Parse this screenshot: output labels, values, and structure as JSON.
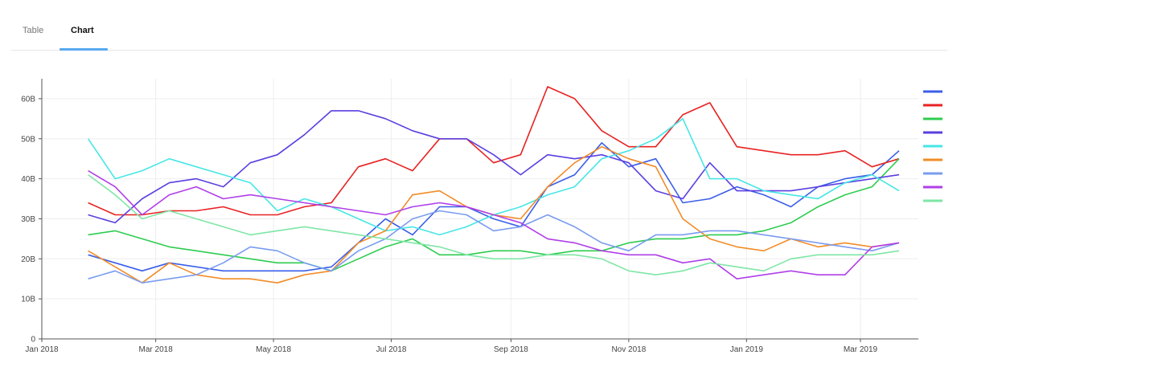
{
  "tabs": {
    "table_label": "Table",
    "chart_label": "Chart",
    "active": "Chart"
  },
  "chart_data": {
    "type": "line",
    "title": "",
    "xlabel": "",
    "ylabel": "",
    "x_tick_labels": [
      "Jan 2018",
      "Mar 2018",
      "May 2018",
      "Jul 2018",
      "Sep 2018",
      "Nov 2018",
      "Jan 2019",
      "Mar 2019"
    ],
    "y_tick_labels": [
      "0",
      "10B",
      "20B",
      "30B",
      "40B",
      "50B",
      "60B"
    ],
    "ylim": [
      0,
      65000000000
    ],
    "xlim": [
      "2018-01-01",
      "2019-03-31"
    ],
    "grid": true,
    "legend": "right",
    "x": [
      "2018-01-25",
      "2018-02-08",
      "2018-02-22",
      "2018-03-08",
      "2018-03-22",
      "2018-04-05",
      "2018-04-19",
      "2018-05-03",
      "2018-05-17",
      "2018-05-31",
      "2018-06-14",
      "2018-06-28",
      "2018-07-12",
      "2018-07-26",
      "2018-08-09",
      "2018-08-23",
      "2018-09-06",
      "2018-09-20",
      "2018-10-04",
      "2018-10-18",
      "2018-11-01",
      "2018-11-15",
      "2018-11-29",
      "2018-12-13",
      "2018-12-27",
      "2019-01-10",
      "2019-01-24",
      "2019-02-07",
      "2019-02-21",
      "2019-03-07",
      "2019-03-21"
    ],
    "series": [
      {
        "color": "#3b5ee8",
        "values": [
          21,
          19,
          17,
          19,
          18,
          17,
          17,
          17,
          17,
          18,
          24,
          30,
          26,
          33,
          33,
          30,
          28,
          38,
          41,
          49,
          43,
          45,
          34,
          35,
          38,
          36,
          33,
          38,
          40,
          41,
          47
        ]
      },
      {
        "color": "#e82222",
        "values": [
          34,
          31,
          31,
          32,
          32,
          33,
          31,
          31,
          33,
          34,
          43,
          45,
          42,
          50,
          50,
          44,
          46,
          63,
          60,
          52,
          48,
          48,
          56,
          59,
          48,
          47,
          46,
          46,
          47,
          43,
          45
        ]
      },
      {
        "color": "#2ecc50",
        "values": [
          26,
          27,
          25,
          23,
          22,
          21,
          20,
          19,
          19,
          17,
          20,
          23,
          25,
          21,
          21,
          22,
          22,
          21,
          22,
          22,
          24,
          25,
          25,
          26,
          26,
          27,
          29,
          33,
          36,
          38,
          45
        ]
      },
      {
        "color": "#5b3fe0",
        "values": [
          31,
          29,
          35,
          39,
          40,
          38,
          44,
          46,
          51,
          57,
          57,
          55,
          52,
          50,
          50,
          46,
          41,
          46,
          45,
          46,
          44,
          37,
          35,
          44,
          37,
          37,
          37,
          38,
          39,
          40,
          41
        ]
      },
      {
        "color": "#47e6e6",
        "values": [
          50,
          40,
          42,
          45,
          43,
          41,
          39,
          32,
          35,
          33,
          30,
          27,
          28,
          26,
          28,
          31,
          33,
          36,
          38,
          45,
          47,
          50,
          55,
          40,
          40,
          37,
          36,
          35,
          39,
          41,
          37
        ]
      },
      {
        "color": "#f28c28",
        "values": [
          22,
          18,
          14,
          19,
          16,
          15,
          15,
          14,
          16,
          17,
          24,
          27,
          36,
          37,
          33,
          31,
          30,
          38,
          44,
          48,
          45,
          43,
          30,
          25,
          23,
          22,
          25,
          23,
          24,
          23,
          24
        ]
      },
      {
        "color": "#7a9cf0",
        "values": [
          15,
          17,
          14,
          15,
          16,
          19,
          23,
          22,
          19,
          17,
          22,
          25,
          30,
          32,
          31,
          27,
          28,
          31,
          28,
          24,
          22,
          26,
          26,
          27,
          27,
          26,
          25,
          24,
          23,
          22,
          24
        ]
      },
      {
        "color": "#b03fe8",
        "values": [
          42,
          38,
          31,
          36,
          38,
          35,
          36,
          35,
          34,
          33,
          32,
          31,
          33,
          34,
          33,
          31,
          29,
          25,
          24,
          22,
          21,
          21,
          19,
          20,
          15,
          16,
          17,
          16,
          16,
          23,
          24
        ]
      },
      {
        "color": "#7fe6a6",
        "values": [
          41,
          36,
          30,
          32,
          30,
          28,
          26,
          27,
          28,
          27,
          26,
          25,
          24,
          23,
          21,
          20,
          20,
          21,
          21,
          20,
          17,
          16,
          17,
          19,
          18,
          17,
          20,
          21,
          21,
          21,
          22
        ]
      }
    ]
  }
}
